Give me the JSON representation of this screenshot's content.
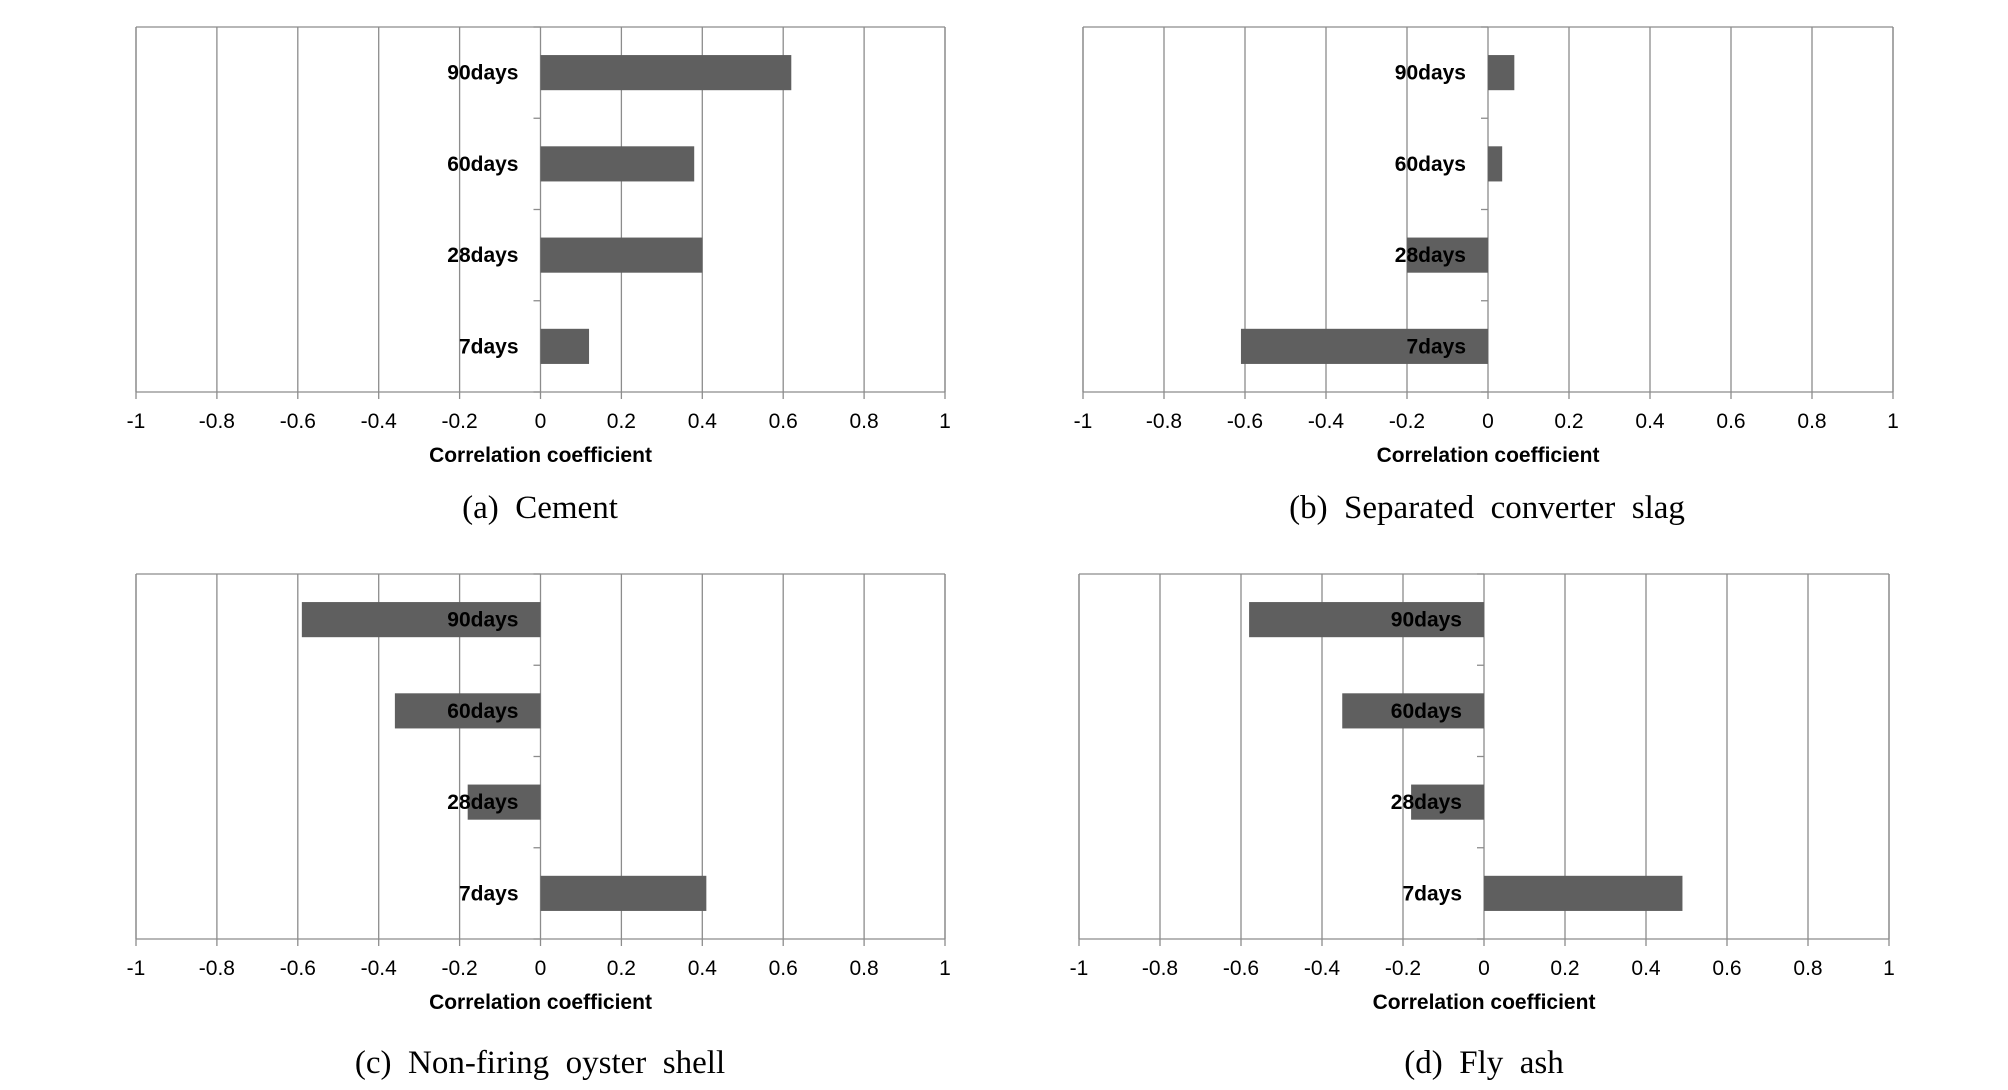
{
  "chart_data": [
    {
      "type": "bar",
      "orientation": "horizontal",
      "caption": "(a)  Cement",
      "xlabel": "Correlation coefficient",
      "xlim": [
        -1,
        1
      ],
      "xticks": [
        -1,
        -0.8,
        -0.6,
        -0.4,
        -0.2,
        0,
        0.2,
        0.4,
        0.6,
        0.8,
        1
      ],
      "tick_labels": [
        "-1",
        "-0.8",
        "-0.6",
        "-0.4",
        "-0.2",
        "0",
        "0.2",
        "0.4",
        "0.6",
        "0.8",
        "1"
      ],
      "categories": [
        "90days",
        "60days",
        "28days",
        "7days"
      ],
      "values": [
        0.62,
        0.38,
        0.4,
        0.12
      ],
      "grid": true,
      "bar_color": "#5f5f5f"
    },
    {
      "type": "bar",
      "orientation": "horizontal",
      "caption": "(b)  Separated  converter  slag",
      "xlabel": "Correlation coefficient",
      "xlim": [
        -1,
        1
      ],
      "xticks": [
        -1,
        -0.8,
        -0.6,
        -0.4,
        -0.2,
        0,
        0.2,
        0.4,
        0.6,
        0.8,
        1
      ],
      "tick_labels": [
        "-1",
        "-0.8",
        "-0.6",
        "-0.4",
        "-0.2",
        "0",
        "0.2",
        "0.4",
        "0.6",
        "0.8",
        "1"
      ],
      "categories": [
        "90days",
        "60days",
        "28days",
        "7days"
      ],
      "values": [
        0.065,
        0.035,
        -0.2,
        -0.61
      ],
      "grid": true,
      "bar_color": "#5f5f5f"
    },
    {
      "type": "bar",
      "orientation": "horizontal",
      "caption": "(c)  Non-firing  oyster  shell",
      "xlabel": "Correlation coefficient",
      "xlim": [
        -1,
        1
      ],
      "xticks": [
        -1,
        -0.8,
        -0.6,
        -0.4,
        -0.2,
        0,
        0.2,
        0.4,
        0.6,
        0.8,
        1
      ],
      "tick_labels": [
        "-1",
        "-0.8",
        "-0.6",
        "-0.4",
        "-0.2",
        "0",
        "0.2",
        "0.4",
        "0.6",
        "0.8",
        "1"
      ],
      "categories": [
        "90days",
        "60days",
        "28days",
        "7days"
      ],
      "values": [
        -0.59,
        -0.36,
        -0.18,
        0.41
      ],
      "grid": true,
      "bar_color": "#5f5f5f"
    },
    {
      "type": "bar",
      "orientation": "horizontal",
      "caption": "(d)  Fly  ash",
      "xlabel": "Correlation coefficient",
      "xlim": [
        -1,
        1
      ],
      "xticks": [
        -1,
        -0.8,
        -0.6,
        -0.4,
        -0.2,
        0,
        0.2,
        0.4,
        0.6,
        0.8,
        1
      ],
      "tick_labels": [
        "-1",
        "-0.8",
        "-0.6",
        "-0.4",
        "-0.2",
        "0",
        "0.2",
        "0.4",
        "0.6",
        "0.8",
        "1"
      ],
      "categories": [
        "90days",
        "60days",
        "28days",
        "7days"
      ],
      "values": [
        -0.58,
        -0.35,
        -0.18,
        0.49
      ],
      "grid": true,
      "bar_color": "#5f5f5f"
    }
  ]
}
